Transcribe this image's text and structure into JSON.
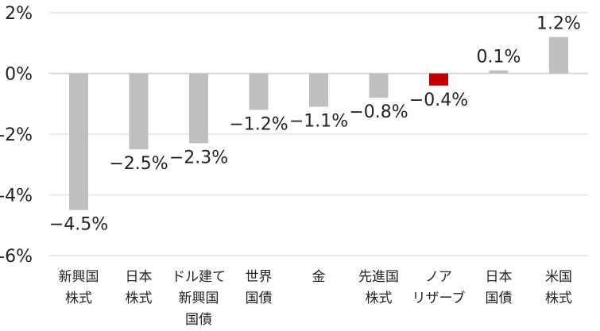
{
  "chart_data": {
    "type": "bar",
    "categories": [
      [
        "新興国",
        "株式"
      ],
      [
        "日本",
        "株式"
      ],
      [
        "ドル建て",
        "新興国",
        "国債"
      ],
      [
        "世界",
        "国債"
      ],
      [
        "金"
      ],
      [
        "先進国",
        "株式"
      ],
      [
        "ノア",
        "リザーブ"
      ],
      [
        "日本",
        "国債"
      ],
      [
        "米国",
        "株式"
      ]
    ],
    "values": [
      -4.5,
      -2.5,
      -2.3,
      -1.2,
      -1.1,
      -0.8,
      -0.4,
      0.1,
      1.2
    ],
    "data_labels": [
      "−4.5%",
      "−2.5%",
      "−2.3%",
      "−1.2%",
      "−1.1%",
      "−0.8%",
      "−0.4%",
      "0.1%",
      "1.2%"
    ],
    "highlight_index": 6,
    "ylim": [
      -6,
      2
    ],
    "yticks": [
      2,
      0,
      -2,
      -4,
      -6
    ],
    "ytick_labels": [
      "2%",
      "0%",
      "-2%",
      "-4%",
      "-6%"
    ],
    "grid": true,
    "colors": {
      "bar": "#bfbfbf",
      "highlight": "#c00000",
      "grid": "#e3e3e3",
      "text": "#222222"
    },
    "title": "",
    "xlabel": "",
    "ylabel": ""
  }
}
